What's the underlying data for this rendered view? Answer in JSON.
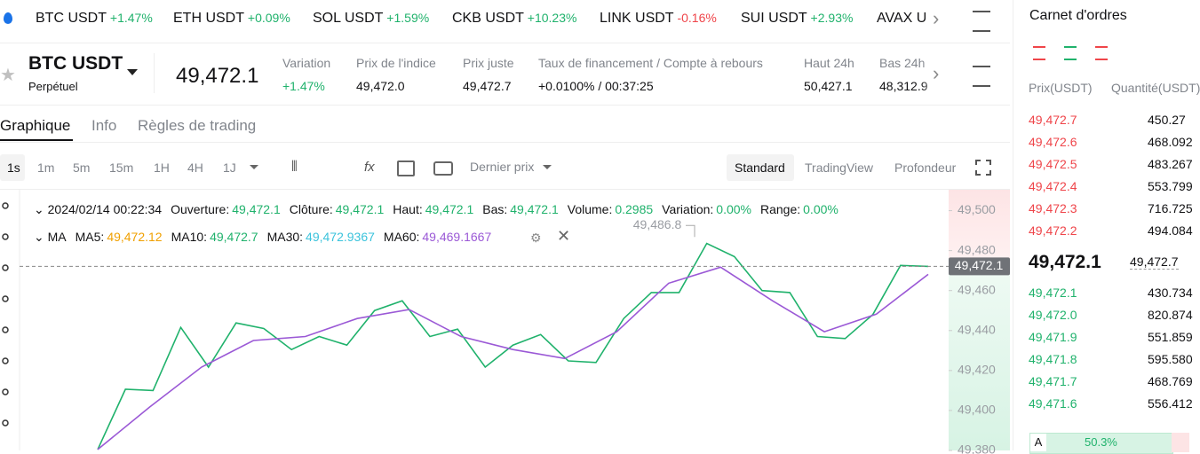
{
  "ticker": [
    {
      "symbol": "BTC USDT",
      "change": "+1.47%"
    },
    {
      "symbol": "ETH USDT",
      "change": "+0.09%"
    },
    {
      "symbol": "SOL USDT",
      "change": "+1.59%"
    },
    {
      "symbol": "CKB USDT",
      "change": "+10.23%"
    },
    {
      "symbol": "LINK USDT",
      "change": "-0.16%"
    },
    {
      "symbol": "SUI USDT",
      "change": "+2.93%"
    },
    {
      "symbol": "AVAX U",
      "change": ""
    }
  ],
  "header": {
    "symbol": "BTC USDT",
    "subtitle": "Perpétuel",
    "price": "49,472.1",
    "stats": [
      {
        "label": "Variation",
        "value": "+1.47%"
      },
      {
        "label": "Prix de l'indice",
        "value": "49,472.0"
      },
      {
        "label": "Prix juste",
        "value": "49,472.7"
      },
      {
        "label": "Taux de financement / Compte à rebours",
        "value": "+0.0100% / 00:37:25"
      },
      {
        "label": "Haut 24h",
        "value": "50,427.1"
      },
      {
        "label": "Bas 24h",
        "value": "48,312.9"
      }
    ]
  },
  "tabs": [
    "Graphique",
    "Info",
    "Règles de trading"
  ],
  "intervals": [
    "1s",
    "1m",
    "5m",
    "15m",
    "1H",
    "4H",
    "1J"
  ],
  "price_source": "Dernier prix",
  "views": [
    "Standard",
    "TradingView",
    "Profondeur"
  ],
  "ohlc": {
    "date": "2024/02/14 00:22:34",
    "items": [
      {
        "label": "Ouverture:",
        "value": "49,472.1"
      },
      {
        "label": "Clôture:",
        "value": "49,472.1"
      },
      {
        "label": "Haut:",
        "value": "49,472.1"
      },
      {
        "label": "Bas:",
        "value": "49,472.1"
      },
      {
        "label": "Volume:",
        "value": "0.2985"
      },
      {
        "label": "Variation:",
        "value": "0.00%"
      },
      {
        "label": "Range:",
        "value": "0.00%"
      }
    ]
  },
  "ma": {
    "label": "MA",
    "items": [
      {
        "label": "MA5:",
        "value": "49,472.12",
        "color": "#f0a000"
      },
      {
        "label": "MA10:",
        "value": "49,472.7",
        "color": "#20b26c"
      },
      {
        "label": "MA30:",
        "value": "49,472.9367",
        "color": "#3bc3dc"
      },
      {
        "label": "MA60:",
        "value": "49,469.1667",
        "color": "#9b59d6"
      }
    ]
  },
  "chart_data": {
    "type": "line",
    "ylim": [
      49380,
      49510
    ],
    "yticks": [
      {
        "value": 49500,
        "label": "49,500"
      },
      {
        "value": 49480,
        "label": "49,480"
      },
      {
        "value": 49460,
        "label": "49,460"
      },
      {
        "value": 49440,
        "label": "49,440"
      },
      {
        "value": 49420,
        "label": "49,420"
      },
      {
        "value": 49400,
        "label": "49,400"
      },
      {
        "value": 49380,
        "label": "49,380"
      }
    ],
    "series": [
      {
        "name": "Prix",
        "color": "#20b26c",
        "values": [
          49380.5,
          49410.6,
          49410,
          49441.6,
          49421.7,
          49443.8,
          49441,
          49430.5,
          49437,
          49432.7,
          49450,
          49454.9,
          49437,
          49440.7,
          49421.7,
          49432.7,
          49438,
          49424.8,
          49424,
          49446,
          49459,
          49459,
          49483.6,
          49477,
          49460,
          49459,
          49437,
          49436,
          49448,
          49472.6,
          49472.1
        ]
      },
      {
        "name": "MA60",
        "color": "#9b59d6",
        "values": [
          49380.5,
          49401.7,
          49421.7,
          49435,
          49437,
          49446,
          49450.5,
          49437,
          49430.5,
          49426,
          49439.4,
          49463.7,
          49471.7,
          49454.9,
          49439.4,
          49448.2,
          49468.1
        ]
      }
    ],
    "high_marker": {
      "value": 49486.8,
      "label": "49,486.8"
    },
    "last_price": {
      "value": 49472.1,
      "label": "49,472.1"
    }
  },
  "orderbook": {
    "title": "Carnet d'ordres",
    "columns": [
      "Prix(USDT)",
      "Quantité(USDT)"
    ],
    "asks": [
      [
        "49,472.7",
        "450.27"
      ],
      [
        "49,472.6",
        "468.092"
      ],
      [
        "49,472.5",
        "483.267"
      ],
      [
        "49,472.4",
        "553.799"
      ],
      [
        "49,472.3",
        "716.725"
      ],
      [
        "49,472.2",
        "494.084"
      ]
    ],
    "mid_price": "49,472.1",
    "mark_price": "49,472.7",
    "bids": [
      [
        "49,472.1",
        "430.734"
      ],
      [
        "49,472.0",
        "820.874"
      ],
      [
        "49,471.9",
        "551.859"
      ],
      [
        "49,471.8",
        "595.580"
      ],
      [
        "49,471.7",
        "468.769"
      ],
      [
        "49,471.6",
        "556.412"
      ]
    ],
    "buy_label": "A",
    "buy_ratio": "50.3%"
  }
}
